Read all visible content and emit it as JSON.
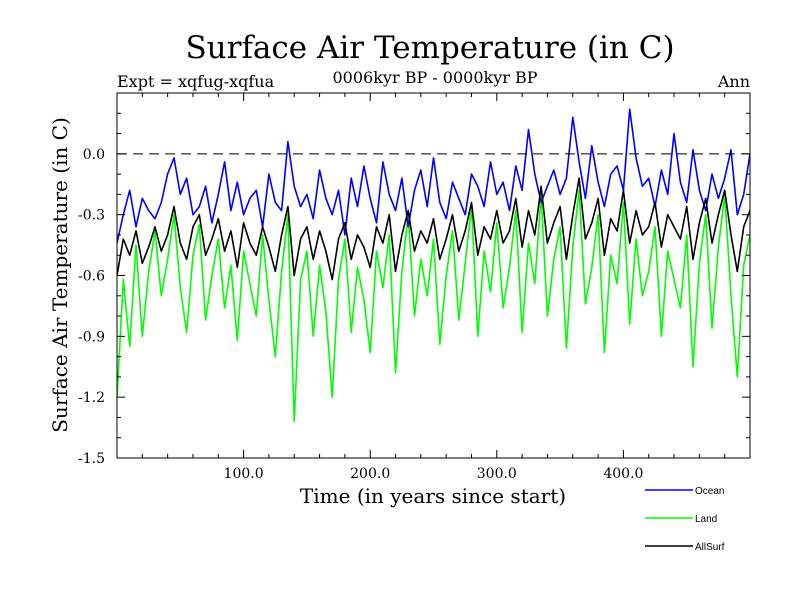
{
  "chart_data": {
    "type": "line",
    "title": "Surface Air Temperature (in C)",
    "subtitle_left": "Expt = xqfug-xqfua",
    "subtitle_center": "0006kyr BP - 0000kyr BP",
    "subtitle_right": "Ann",
    "xlabel": "Time (in years since start)",
    "ylabel": "Surface Air Temperature (in C)",
    "xlim": [
      0,
      500
    ],
    "ylim": [
      -1.5,
      0.3
    ],
    "x_ticks": [
      100,
      200,
      300,
      400
    ],
    "x_tick_labels": [
      "100.0",
      "200.0",
      "300.0",
      "400.0"
    ],
    "y_ticks": [
      0.0,
      -0.3,
      -0.6,
      -0.9,
      -1.2,
      -1.5
    ],
    "y_tick_labels": [
      "0.0",
      "-0.3",
      "-0.6",
      "-0.9",
      "-1.2",
      "-1.5"
    ],
    "reference_line": 0.0,
    "series": [
      {
        "name": "Ocean",
        "color": "#0000ff",
        "x_start": 0,
        "x_step": 5,
        "values": [
          -0.44,
          -0.3,
          -0.18,
          -0.36,
          -0.22,
          -0.28,
          -0.32,
          -0.24,
          -0.1,
          -0.02,
          -0.2,
          -0.12,
          -0.3,
          -0.26,
          -0.16,
          -0.34,
          -0.2,
          -0.04,
          -0.28,
          -0.14,
          -0.3,
          -0.22,
          -0.18,
          -0.36,
          -0.1,
          -0.24,
          -0.28,
          0.06,
          -0.16,
          -0.26,
          -0.2,
          -0.32,
          -0.08,
          -0.22,
          -0.3,
          -0.18,
          -0.4,
          -0.12,
          -0.26,
          -0.06,
          -0.22,
          -0.34,
          -0.04,
          -0.2,
          -0.28,
          -0.12,
          -0.36,
          -0.18,
          -0.08,
          -0.26,
          -0.02,
          -0.24,
          -0.32,
          -0.14,
          -0.22,
          -0.3,
          -0.1,
          -0.16,
          -0.26,
          -0.04,
          -0.2,
          -0.14,
          -0.28,
          -0.06,
          -0.18,
          0.12,
          -0.1,
          -0.24,
          -0.16,
          -0.08,
          -0.2,
          -0.12,
          0.18,
          -0.04,
          -0.22,
          0.04,
          -0.14,
          -0.26,
          -0.1,
          -0.06,
          -0.18,
          0.22,
          -0.02,
          -0.16,
          -0.12,
          -0.26,
          -0.08,
          -0.2,
          0.1,
          -0.14,
          -0.24,
          0.02,
          -0.18,
          -0.28,
          -0.1,
          -0.22,
          -0.12,
          0.02,
          -0.3,
          -0.2,
          0.0
        ]
      },
      {
        "name": "Land",
        "color": "#00ff00",
        "x_start": 0,
        "x_step": 5,
        "values": [
          -1.2,
          -0.62,
          -0.95,
          -0.45,
          -0.9,
          -0.58,
          -0.38,
          -0.7,
          -0.52,
          -0.3,
          -0.66,
          -0.88,
          -0.5,
          -0.35,
          -0.82,
          -0.6,
          -0.42,
          -0.76,
          -0.55,
          -0.92,
          -0.48,
          -0.64,
          -0.8,
          -0.4,
          -0.72,
          -1.0,
          -0.58,
          -0.3,
          -1.32,
          -0.62,
          -0.48,
          -0.9,
          -0.55,
          -0.78,
          -1.2,
          -0.62,
          -0.42,
          -0.88,
          -0.56,
          -0.72,
          -0.98,
          -0.48,
          -0.66,
          -0.4,
          -1.08,
          -0.58,
          -0.3,
          -0.8,
          -0.52,
          -0.7,
          -0.42,
          -0.94,
          -0.6,
          -0.38,
          -0.82,
          -0.54,
          -0.26,
          -0.9,
          -0.48,
          -0.68,
          -0.34,
          -0.76,
          -0.56,
          -0.28,
          -0.88,
          -0.44,
          -0.64,
          -0.2,
          -0.8,
          -0.52,
          -0.36,
          -0.96,
          -0.46,
          -0.18,
          -0.74,
          -0.56,
          -0.3,
          -0.98,
          -0.5,
          -0.64,
          -0.24,
          -0.84,
          -0.42,
          -0.7,
          -0.58,
          -0.36,
          -0.9,
          -0.48,
          -0.62,
          -0.76,
          -0.4,
          -1.05,
          -0.54,
          -0.3,
          -0.86,
          -0.46,
          -0.2,
          -0.7,
          -1.1,
          -0.55,
          -0.4
        ]
      },
      {
        "name": "AllSurf",
        "color": "#000000",
        "x_start": 0,
        "x_step": 5,
        "values": [
          -0.6,
          -0.42,
          -0.5,
          -0.38,
          -0.54,
          -0.46,
          -0.36,
          -0.48,
          -0.4,
          -0.26,
          -0.44,
          -0.52,
          -0.36,
          -0.3,
          -0.5,
          -0.42,
          -0.32,
          -0.48,
          -0.38,
          -0.56,
          -0.34,
          -0.44,
          -0.5,
          -0.36,
          -0.46,
          -0.58,
          -0.4,
          -0.26,
          -0.6,
          -0.42,
          -0.36,
          -0.52,
          -0.38,
          -0.48,
          -0.62,
          -0.42,
          -0.34,
          -0.52,
          -0.4,
          -0.46,
          -0.56,
          -0.36,
          -0.44,
          -0.3,
          -0.58,
          -0.4,
          -0.28,
          -0.48,
          -0.38,
          -0.44,
          -0.32,
          -0.52,
          -0.42,
          -0.3,
          -0.48,
          -0.38,
          -0.24,
          -0.5,
          -0.36,
          -0.42,
          -0.28,
          -0.44,
          -0.38,
          -0.22,
          -0.46,
          -0.28,
          -0.4,
          -0.16,
          -0.44,
          -0.34,
          -0.26,
          -0.52,
          -0.3,
          -0.12,
          -0.42,
          -0.34,
          -0.22,
          -0.5,
          -0.32,
          -0.38,
          -0.18,
          -0.44,
          -0.28,
          -0.4,
          -0.36,
          -0.24,
          -0.46,
          -0.3,
          -0.36,
          -0.42,
          -0.26,
          -0.52,
          -0.34,
          -0.22,
          -0.44,
          -0.3,
          -0.18,
          -0.4,
          -0.58,
          -0.36,
          -0.28
        ]
      }
    ]
  }
}
